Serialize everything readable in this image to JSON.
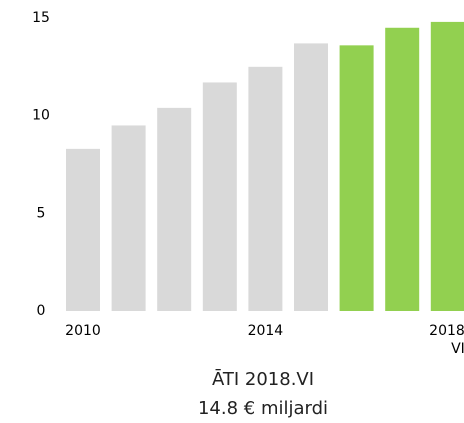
{
  "chart_data": {
    "type": "bar",
    "categories": [
      "2010",
      null,
      null,
      null,
      "2014",
      null,
      null,
      null,
      "2018 VI"
    ],
    "values": [
      8.3,
      9.5,
      10.4,
      11.7,
      12.5,
      13.7,
      13.6,
      14.5,
      14.8
    ],
    "colors": [
      "#d9d9d9",
      "#d9d9d9",
      "#d9d9d9",
      "#d9d9d9",
      "#d9d9d9",
      "#d9d9d9",
      "#92d050",
      "#92d050",
      "#92d050"
    ],
    "ylim": [
      0,
      15
    ],
    "yticks": [
      0,
      5,
      10,
      15
    ],
    "grid": false,
    "annotations": [
      "ĀTI 2018.VI",
      "14.8 € miljardi"
    ]
  }
}
